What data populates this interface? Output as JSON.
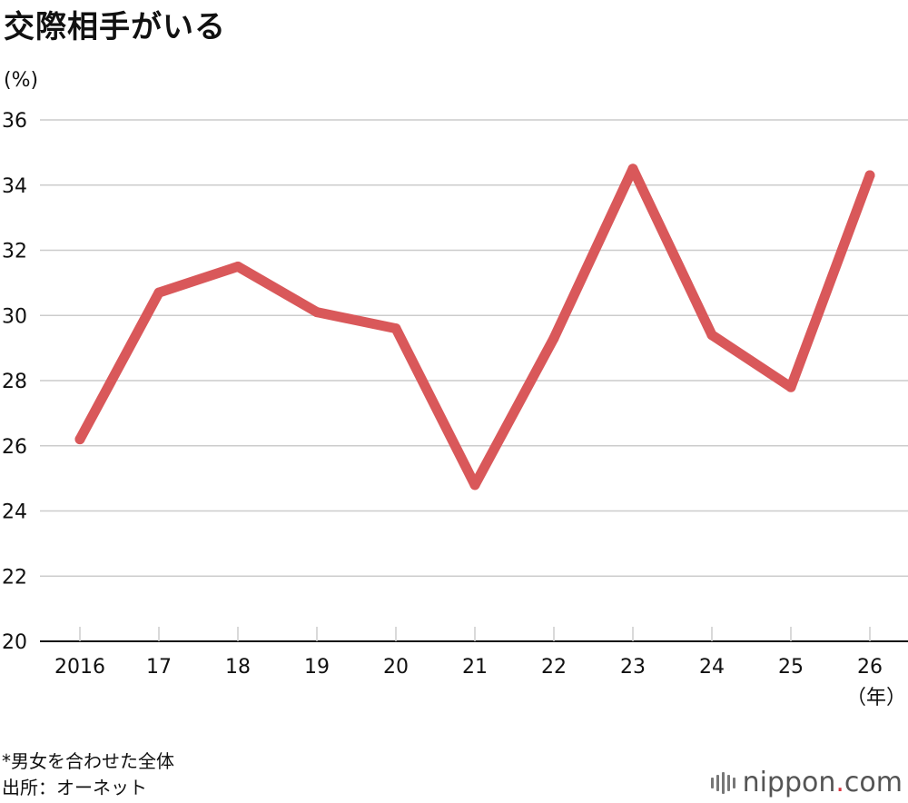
{
  "title": "交際相手がいる",
  "unit_label": "(%)",
  "x_unit_label": "（年）",
  "footnote": "*男女を合わせた全体",
  "source": "出所：オーネット",
  "logo": {
    "text_main": "nippon",
    "text_dot": ".",
    "text_tail": "com"
  },
  "colors": {
    "line": "#d9585a",
    "grid": "#cccccc",
    "axis": "#111111"
  },
  "chart_data": {
    "type": "line",
    "title": "交際相手がいる",
    "ylabel": "(%)",
    "xlabel": "（年）",
    "categories": [
      "2016",
      "17",
      "18",
      "19",
      "20",
      "21",
      "22",
      "23",
      "24",
      "25",
      "26"
    ],
    "series": [
      {
        "values": [
          26.2,
          30.7,
          31.5,
          30.1,
          29.6,
          24.8,
          29.3,
          34.5,
          29.4,
          27.8,
          34.3
        ]
      }
    ],
    "ylim": [
      20,
      36
    ],
    "yticks": [
      20,
      22,
      24,
      26,
      28,
      30,
      32,
      34,
      36
    ],
    "grid": true
  }
}
